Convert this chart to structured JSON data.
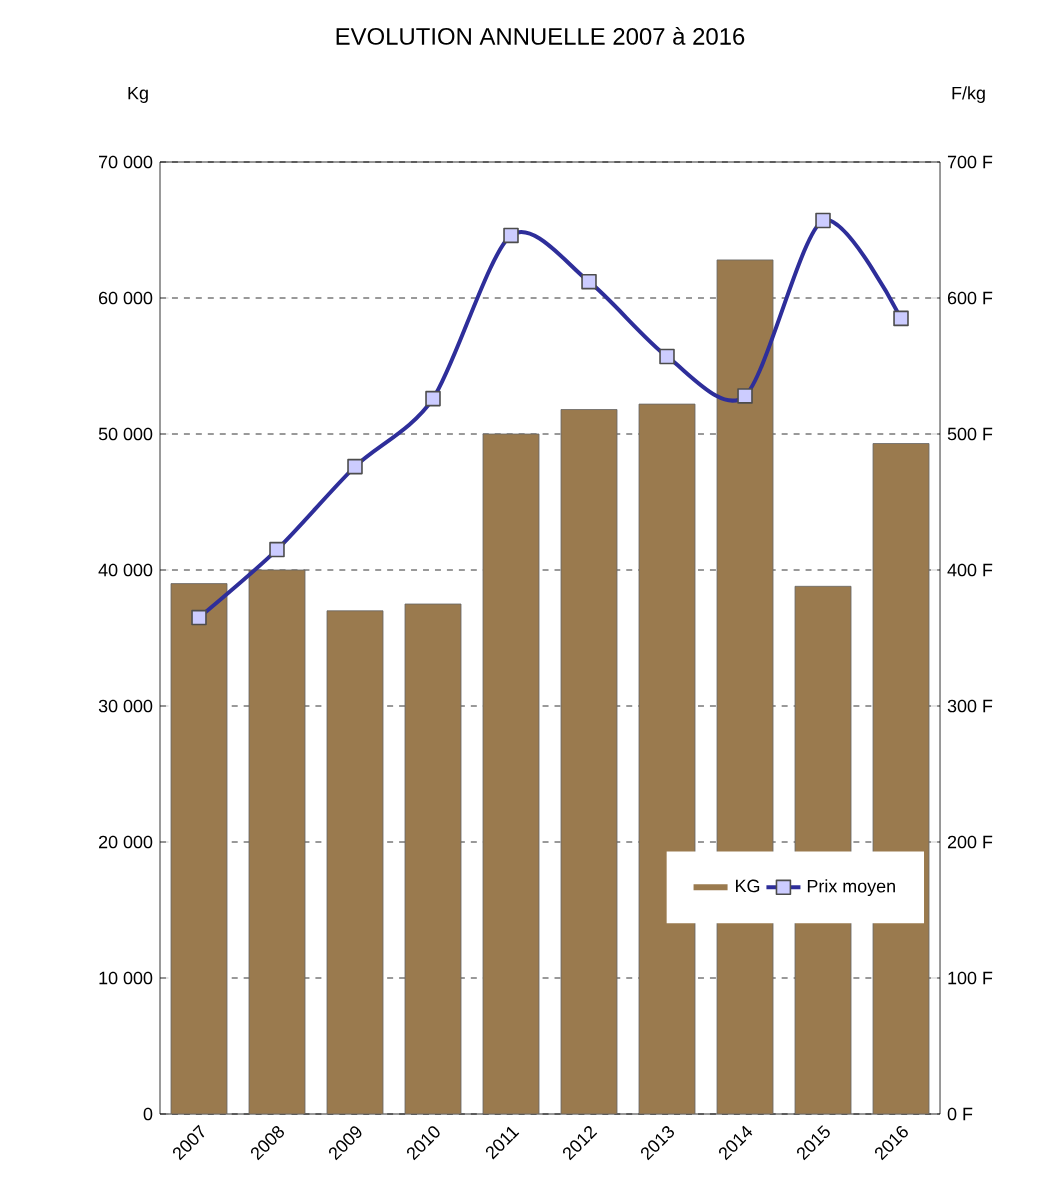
{
  "chart_data": {
    "type": "bar",
    "title": "EVOLUTION ANNUELLE 2007 à  2016",
    "ylabel": "Kg",
    "y2label": "F/kg",
    "categories": [
      "2007",
      "2008",
      "2009",
      "2010",
      "2011",
      "2012",
      "2013",
      "2014",
      "2015",
      "2016"
    ],
    "series": [
      {
        "name": "KG",
        "color": "#9a7a4e",
        "values": [
          39000,
          40000,
          37000,
          37500,
          50000,
          51800,
          52200,
          62800,
          38800,
          49300
        ]
      },
      {
        "name": "Prix moyen",
        "type": "line",
        "axis": "y2",
        "color": "#2e2e9a",
        "values": [
          365,
          415,
          476,
          526,
          646,
          612,
          557,
          528,
          657,
          585
        ]
      }
    ],
    "ylim": [
      0,
      70000
    ],
    "yticks": [
      {
        "value": 0,
        "label": "0"
      },
      {
        "value": 10000,
        "label": "10 000"
      },
      {
        "value": 20000,
        "label": "20 000"
      },
      {
        "value": 30000,
        "label": "30 000"
      },
      {
        "value": 40000,
        "label": "40 000"
      },
      {
        "value": 50000,
        "label": "50 000"
      },
      {
        "value": 60000,
        "label": "60 000"
      },
      {
        "value": 70000,
        "label": "70 000"
      }
    ],
    "y2lim": [
      0,
      700
    ],
    "y2ticks": [
      {
        "value": 0,
        "label": "0 F"
      },
      {
        "value": 100,
        "label": "100 F"
      },
      {
        "value": 200,
        "label": "200 F"
      },
      {
        "value": 300,
        "label": "300 F"
      },
      {
        "value": 400,
        "label": "400 F"
      },
      {
        "value": 500,
        "label": "500 F"
      },
      {
        "value": 600,
        "label": "600 F"
      },
      {
        "value": 700,
        "label": "700 F"
      }
    ],
    "grid": "y",
    "legend": "bottom right",
    "marker": "square",
    "line_style": "solid"
  }
}
